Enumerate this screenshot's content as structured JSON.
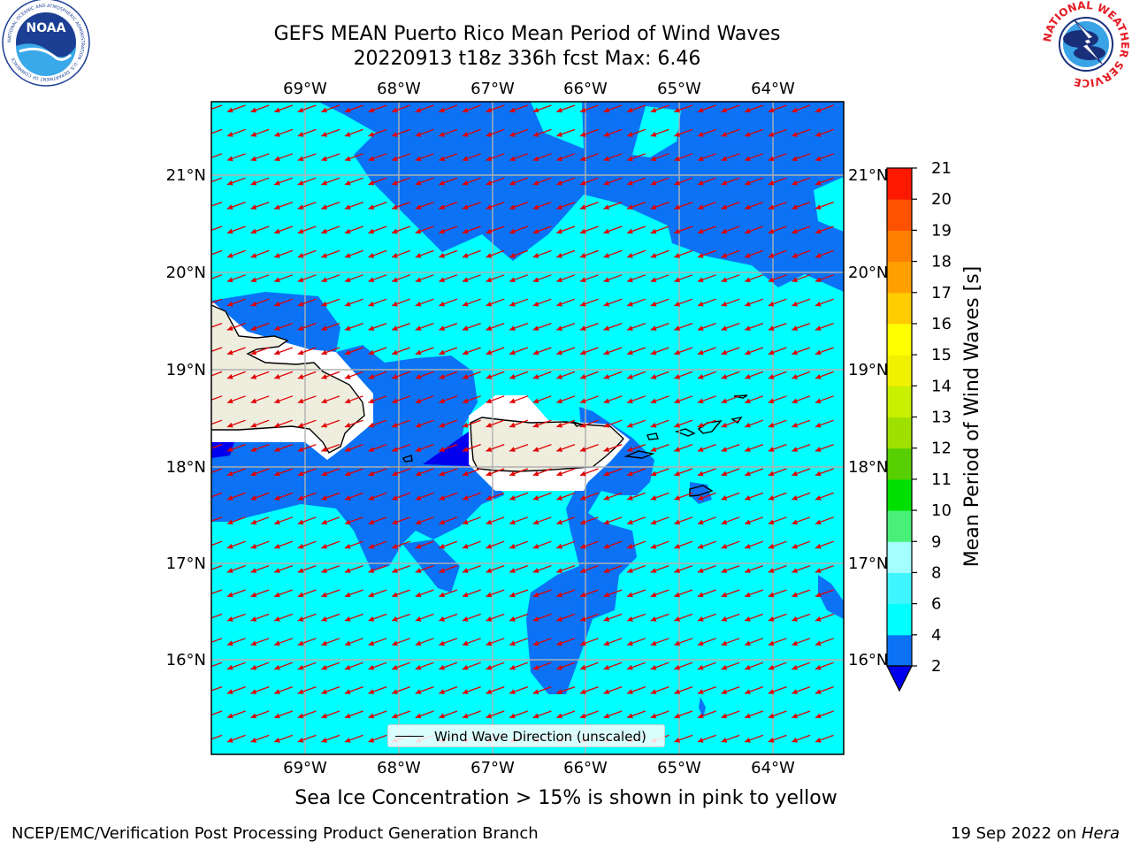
{
  "title": {
    "line1": "GEFS MEAN Puerto Rico Mean Period of Wind Waves",
    "line2": "20220913 t18z 336h fcst   Max: 6.46"
  },
  "map": {
    "lon_ticks": [
      "69°W",
      "68°W",
      "67°W",
      "66°W",
      "65°W",
      "64°W"
    ],
    "lat_ticks": [
      "21°N",
      "20°N",
      "19°N",
      "18°N",
      "17°N",
      "16°N"
    ],
    "legend": "Wind Wave Direction (unscaled)",
    "arrow_color": "#e00000",
    "land_color": "#efedde"
  },
  "colorbar": {
    "label": "Mean Period of Wind Waves [s]",
    "ticks": [
      "2",
      "4",
      "6",
      "8",
      "9",
      "10",
      "11",
      "12",
      "13",
      "14",
      "15",
      "16",
      "17",
      "18",
      "19",
      "20",
      "21"
    ],
    "colors": [
      "#0b72f5",
      "#00ffff",
      "#3ff5ff",
      "#a4ffff",
      "#48f078",
      "#00e000",
      "#58cf00",
      "#a0e000",
      "#c8f000",
      "#f0f000",
      "#ffff00",
      "#ffcc00",
      "#ff9f00",
      "#ff7f00",
      "#ff5200",
      "#ff1800"
    ],
    "under_color": "#0000ee"
  },
  "note": "Sea Ice Concentration > 15% is shown in pink to yellow",
  "footer": {
    "left": "NCEP/EMC/Verification Post Processing Product Generation Branch",
    "right_prefix": "19 Sep 2022 on ",
    "right_italic": "Hera"
  },
  "logos": {
    "left": "NOAA",
    "left_ring": "NATIONAL OCEANIC AND ATMOSPHERIC ADMINISTRATION · U.S. DEPARTMENT OF COMMERCE",
    "right_ring": "NATIONAL WEATHER SERVICE"
  }
}
